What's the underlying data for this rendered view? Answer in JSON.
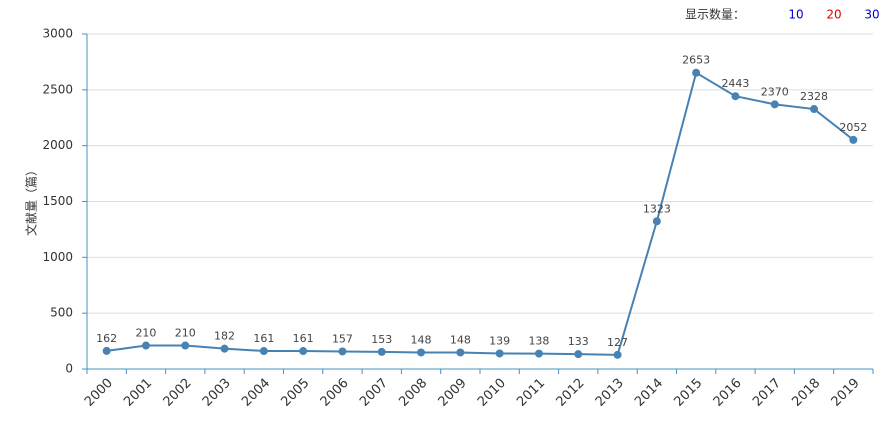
{
  "display_count": {
    "label": "显示数量：",
    "options": [
      10,
      20,
      30
    ],
    "colors": [
      "#0000cc",
      "#e00000",
      "#0000cc"
    ]
  },
  "chart_data": {
    "type": "line",
    "y_label": "文献量（篇）",
    "categories": [
      "2000",
      "2001",
      "2002",
      "2003",
      "2004",
      "2005",
      "2006",
      "2007",
      "2008",
      "2009",
      "2010",
      "2011",
      "2012",
      "2013",
      "2014",
      "2015",
      "2016",
      "2017",
      "2018",
      "2019"
    ],
    "values": [
      162,
      210,
      210,
      182,
      161,
      161,
      157,
      153,
      148,
      148,
      139,
      138,
      133,
      127,
      1323,
      2653,
      2443,
      2370,
      2328,
      2052
    ],
    "color": "#4682b4",
    "ylim": [
      0,
      3000
    ],
    "yticks": [
      0,
      500,
      1000,
      1500,
      2000,
      2500,
      3000
    ],
    "grid": true
  }
}
